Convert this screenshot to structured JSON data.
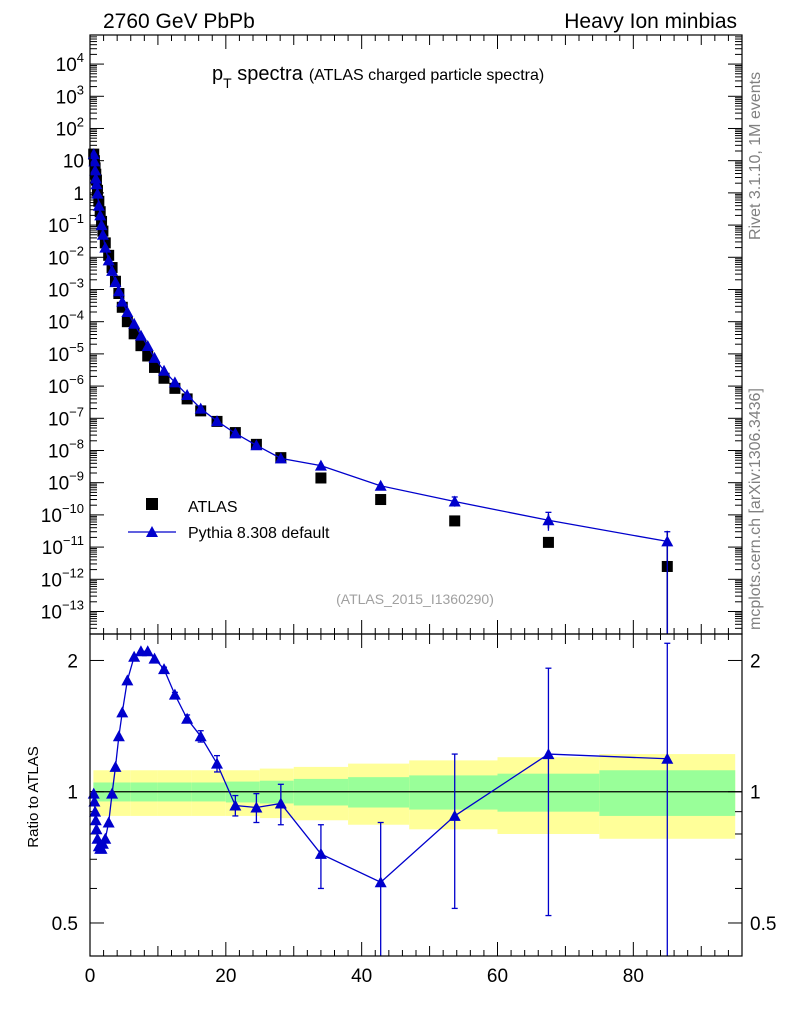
{
  "header": {
    "left": "2760 GeV PbPb",
    "right": "Heavy Ion minbias"
  },
  "side_notes": {
    "version": "Rivet 3.1.10,  1M events",
    "source": "mcplots.cern.ch [arXiv:1306.3436]"
  },
  "colors": {
    "mc": "#0000cc",
    "data": "#000000",
    "band_inner": "#99ff99",
    "band_outer": "#ffff99",
    "note_gray": "#808080"
  },
  "chart_data": [
    {
      "type": "scatter",
      "title_main": "p",
      "title_sub": "T",
      "title_word": " spectra",
      "title_paren": "(ATLAS charged particle spectra)",
      "reference": "(ATLAS_2015_I1360290)",
      "yscale": "log",
      "xlim": [
        0,
        96
      ],
      "ylim": [
        2e-14,
        80000.0
      ],
      "ytick_labels": [
        {
          "exp": 4,
          "label": "10",
          "sup": "4"
        },
        {
          "exp": 3,
          "label": "10",
          "sup": "3"
        },
        {
          "exp": 2,
          "label": "10",
          "sup": "2"
        },
        {
          "exp": 1,
          "label": "10",
          "sup": ""
        },
        {
          "exp": 0,
          "label": "1",
          "sup": ""
        },
        {
          "exp": -1,
          "label": "10",
          "sup": "−1"
        },
        {
          "exp": -2,
          "label": "10",
          "sup": "−2"
        },
        {
          "exp": -3,
          "label": "10",
          "sup": "−3"
        },
        {
          "exp": -4,
          "label": "10",
          "sup": "−4"
        },
        {
          "exp": -5,
          "label": "10",
          "sup": "−5"
        },
        {
          "exp": -6,
          "label": "10",
          "sup": "−6"
        },
        {
          "exp": -7,
          "label": "10",
          "sup": "−7"
        },
        {
          "exp": -8,
          "label": "10",
          "sup": "−8"
        },
        {
          "exp": -9,
          "label": "10",
          "sup": "−9"
        },
        {
          "exp": -10,
          "label": "10",
          "sup": "−10"
        },
        {
          "exp": -11,
          "label": "10",
          "sup": "−11"
        },
        {
          "exp": -12,
          "label": "10",
          "sup": "−12"
        },
        {
          "exp": -13,
          "label": "10",
          "sup": "−13"
        }
      ],
      "legend": [
        {
          "label": "ATLAS",
          "marker": "square"
        },
        {
          "label": "Pythia 8.308 default",
          "marker": "triangle"
        }
      ],
      "legend_position": "bottom-left",
      "series": [
        {
          "name": "ATLAS",
          "x": [
            0.55,
            0.65,
            0.75,
            0.85,
            0.95,
            1.1,
            1.3,
            1.5,
            1.7,
            1.9,
            2.25,
            2.75,
            3.25,
            3.75,
            4.25,
            4.75,
            5.5,
            6.5,
            7.5,
            8.5,
            9.5,
            10.9,
            12.5,
            14.3,
            16.3,
            18.7,
            21.4,
            24.5,
            28.1,
            34.0,
            42.8,
            53.7,
            67.5,
            85.0
          ],
          "y": [
            16,
            10,
            6,
            3.8,
            2.5,
            1.2,
            0.55,
            0.26,
            0.13,
            0.065,
            0.028,
            0.0115,
            0.0048,
            0.0018,
            0.00075,
            0.00028,
            0.0001,
            4.2e-05,
            1.8e-05,
            8.6e-06,
            3.8e-06,
            1.75e-06,
            8.5e-07,
            4e-07,
            1.7e-07,
            8e-08,
            3.6e-08,
            1.55e-08,
            6e-09,
            1.4e-09,
            3e-10,
            6.5e-11,
            1.4e-11,
            2.5e-12
          ]
        },
        {
          "name": "Pythia 8.308 default",
          "x": [
            0.55,
            0.65,
            0.75,
            0.85,
            0.95,
            1.1,
            1.3,
            1.5,
            1.7,
            1.9,
            2.25,
            2.75,
            3.25,
            3.75,
            4.25,
            4.75,
            5.5,
            6.5,
            7.5,
            8.5,
            9.5,
            10.9,
            12.5,
            14.3,
            16.3,
            18.7,
            21.4,
            24.5,
            28.1,
            34.0,
            42.8,
            53.7,
            67.5,
            85.0
          ],
          "y": [
            16,
            9.5,
            5,
            2.8,
            1.85,
            0.95,
            0.4,
            0.2,
            0.1,
            0.05,
            0.02,
            0.008,
            0.0038,
            0.0017,
            0.00088,
            0.00042,
            0.0002,
            8.6e-05,
            3.7e-05,
            1.75e-05,
            7.5e-06,
            3e-06,
            1.3e-06,
            5.3e-07,
            2e-07,
            8.2e-08,
            3.4e-08,
            1.45e-08,
            5.7e-09,
            3.4e-09,
            8e-10,
            2.6e-10,
            6.8e-11,
            1.5e-11
          ]
        }
      ]
    },
    {
      "type": "scatter",
      "ylabel": "Ratio to ATLAS",
      "yscale": "log",
      "xlim": [
        0,
        96
      ],
      "ylim": [
        0.42,
        2.3
      ],
      "xticks": [
        0,
        20,
        40,
        60,
        80
      ],
      "ytick_labels": [
        {
          "value": 2,
          "label": "2"
        },
        {
          "value": 1,
          "label": "1"
        },
        {
          "value": 0.5,
          "label": "0.5"
        }
      ],
      "reference_line": 1,
      "band": {
        "x_edges": [
          0.5,
          3,
          6,
          10,
          15,
          20,
          25,
          30,
          38,
          47,
          60,
          75,
          95
        ],
        "inner": [
          0.05,
          0.05,
          0.05,
          0.05,
          0.05,
          0.055,
          0.06,
          0.07,
          0.08,
          0.09,
          0.1,
          0.12
        ],
        "outer": [
          0.12,
          0.12,
          0.12,
          0.12,
          0.12,
          0.12,
          0.13,
          0.14,
          0.16,
          0.18,
          0.2,
          0.22
        ]
      },
      "series": [
        {
          "name": "Pythia 8.308 default",
          "x": [
            0.55,
            0.65,
            0.75,
            0.85,
            0.95,
            1.1,
            1.3,
            1.5,
            1.7,
            1.9,
            2.25,
            2.75,
            3.25,
            3.75,
            4.25,
            4.75,
            5.5,
            6.5,
            7.5,
            8.5,
            9.5,
            10.9,
            12.5,
            14.3,
            16.3,
            18.7,
            21.4,
            24.5,
            28.1,
            34.0,
            42.8,
            53.7,
            67.5,
            85.0
          ],
          "y": [
            0.99,
            0.95,
            0.9,
            0.86,
            0.82,
            0.78,
            0.75,
            0.74,
            0.74,
            0.76,
            0.78,
            0.85,
            0.99,
            1.14,
            1.34,
            1.52,
            1.8,
            2.04,
            2.1,
            2.1,
            2.02,
            1.91,
            1.67,
            1.47,
            1.34,
            1.16,
            0.93,
            0.92,
            0.94,
            0.72,
            0.62,
            0.88,
            1.22,
            1.19
          ],
          "err": [
            0.01,
            0.01,
            0.01,
            0.01,
            0.01,
            0.01,
            0.01,
            0.01,
            0.01,
            0.01,
            0.01,
            0.01,
            0.01,
            0.01,
            0.01,
            0.01,
            0.01,
            0.01,
            0.01,
            0.01,
            0.01,
            0.02,
            0.02,
            0.03,
            0.04,
            0.05,
            0.05,
            0.07,
            0.1,
            0.12,
            0.23,
            0.34,
            0.7,
            1.0
          ]
        }
      ]
    }
  ]
}
